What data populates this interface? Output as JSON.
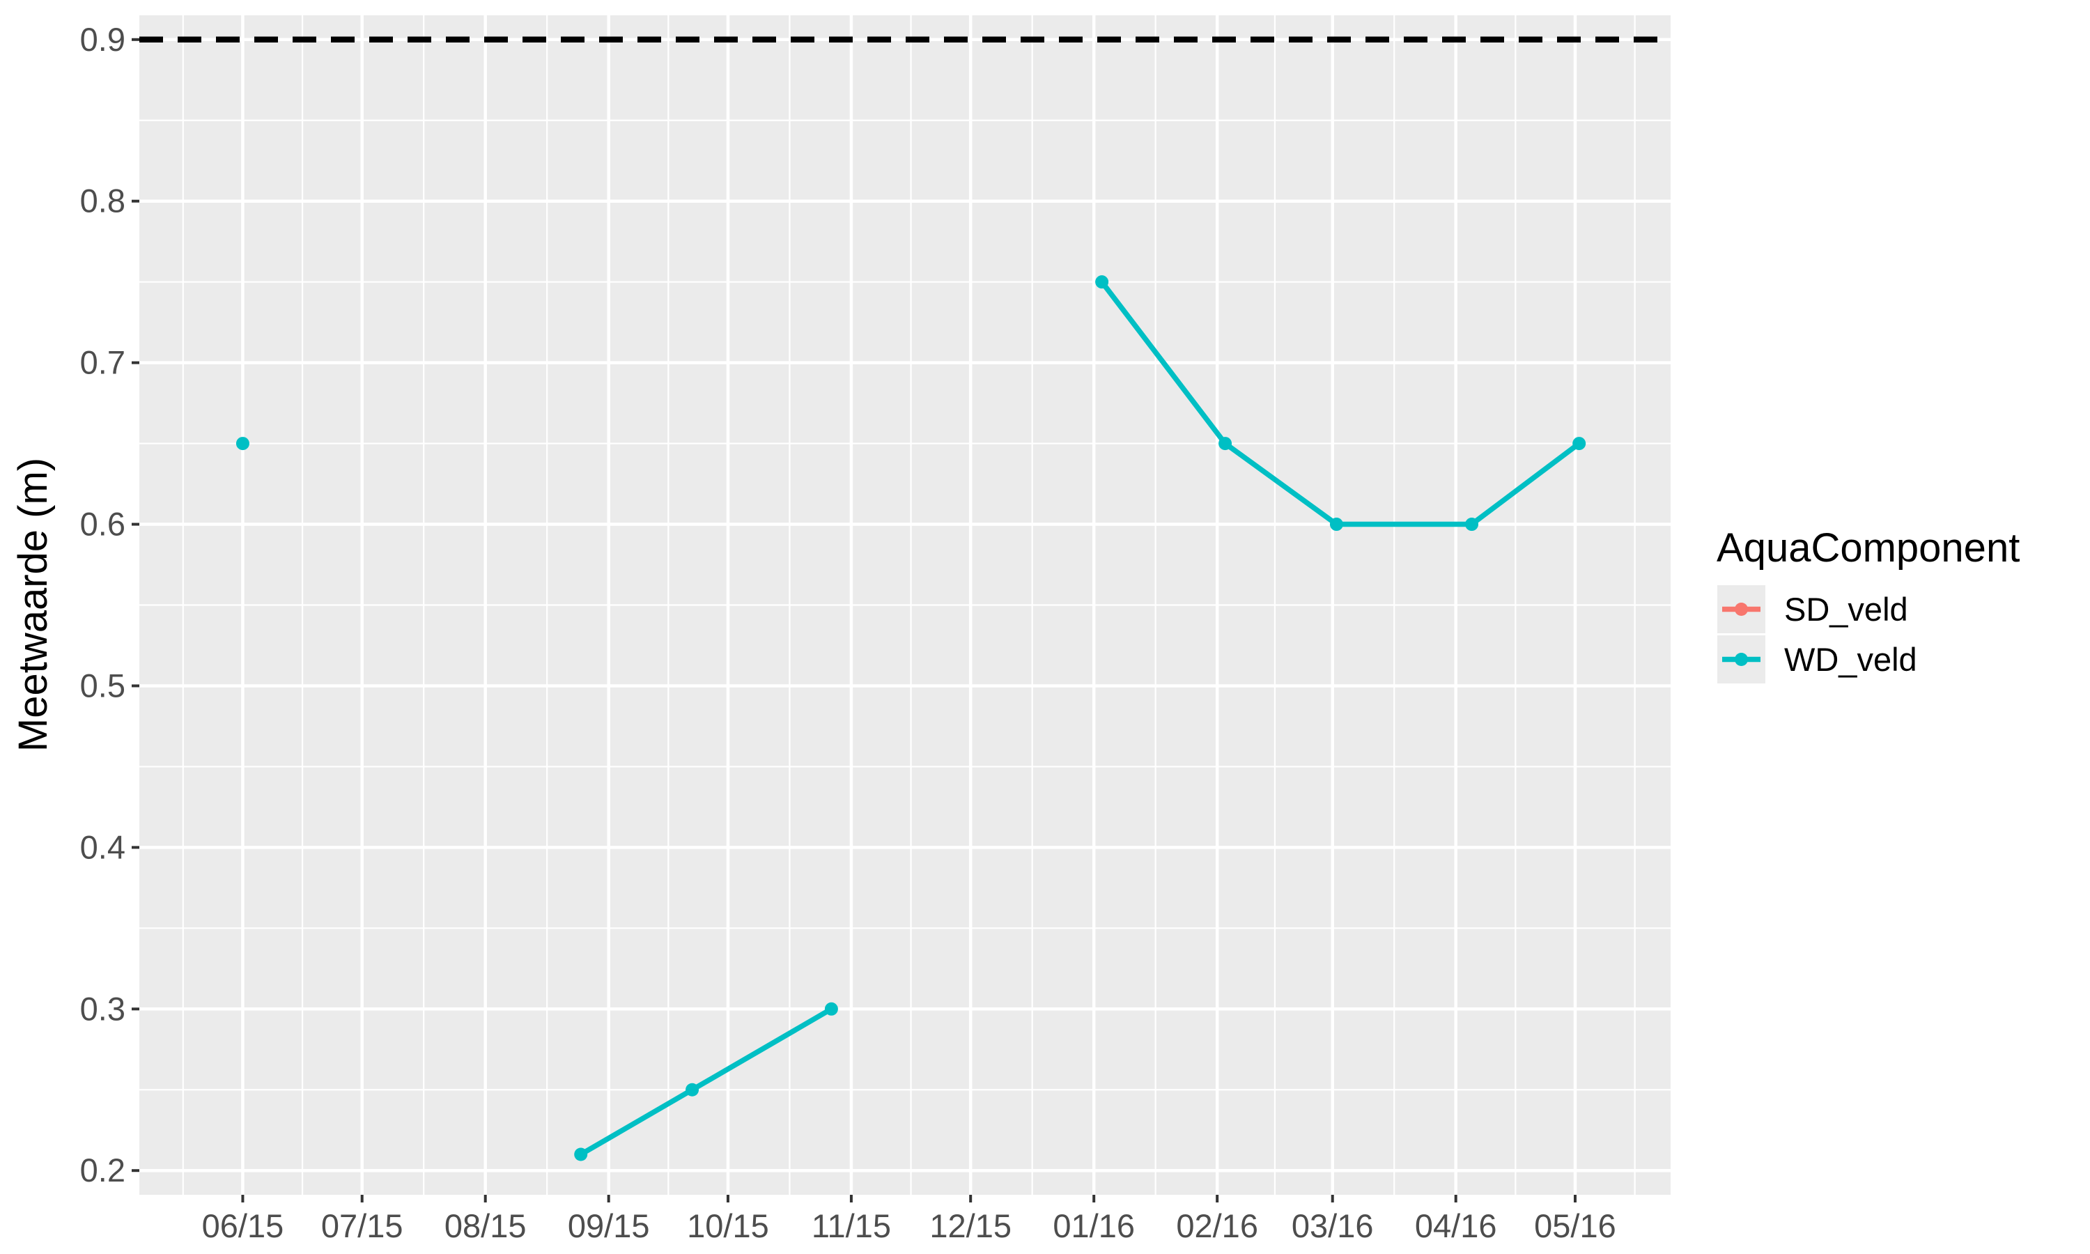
{
  "chart_data": {
    "type": "line",
    "title": "",
    "xlabel": "",
    "ylabel": "Meetwaarde (m)",
    "x_tick_labels": [
      "06/15",
      "07/15",
      "08/15",
      "09/15",
      "10/15",
      "11/15",
      "12/15",
      "01/16",
      "02/16",
      "03/16",
      "04/16",
      "05/16"
    ],
    "x_range": [
      "2015-05-20",
      "2016-06-08"
    ],
    "y_ticks": [
      0.2,
      0.3,
      0.4,
      0.5,
      0.6,
      0.7,
      0.8,
      0.9
    ],
    "ylim": [
      0.185,
      0.915
    ],
    "grid": true,
    "reference_line": {
      "y": 0.9,
      "style": "dashed",
      "color": "#000000"
    },
    "legend": {
      "title": "AquaComponent",
      "position": "right",
      "entries": [
        {
          "name": "SD_veld",
          "color": "#F8766D"
        },
        {
          "name": "WD_veld",
          "color": "#00BFC4"
        }
      ]
    },
    "series": [
      {
        "name": "SD_veld",
        "color": "#F8766D",
        "segments": []
      },
      {
        "name": "WD_veld",
        "color": "#00BFC4",
        "segments": [
          [
            {
              "x": "2015-06-15",
              "y": 0.65
            }
          ],
          [
            {
              "x": "2015-09-08",
              "y": 0.21
            },
            {
              "x": "2015-10-06",
              "y": 0.25
            },
            {
              "x": "2015-11-10",
              "y": 0.3
            }
          ],
          [
            {
              "x": "2016-01-17",
              "y": 0.75
            },
            {
              "x": "2016-02-17",
              "y": 0.65
            },
            {
              "x": "2016-03-16",
              "y": 0.6
            },
            {
              "x": "2016-04-19",
              "y": 0.6
            },
            {
              "x": "2016-05-16",
              "y": 0.65
            }
          ]
        ]
      }
    ]
  }
}
